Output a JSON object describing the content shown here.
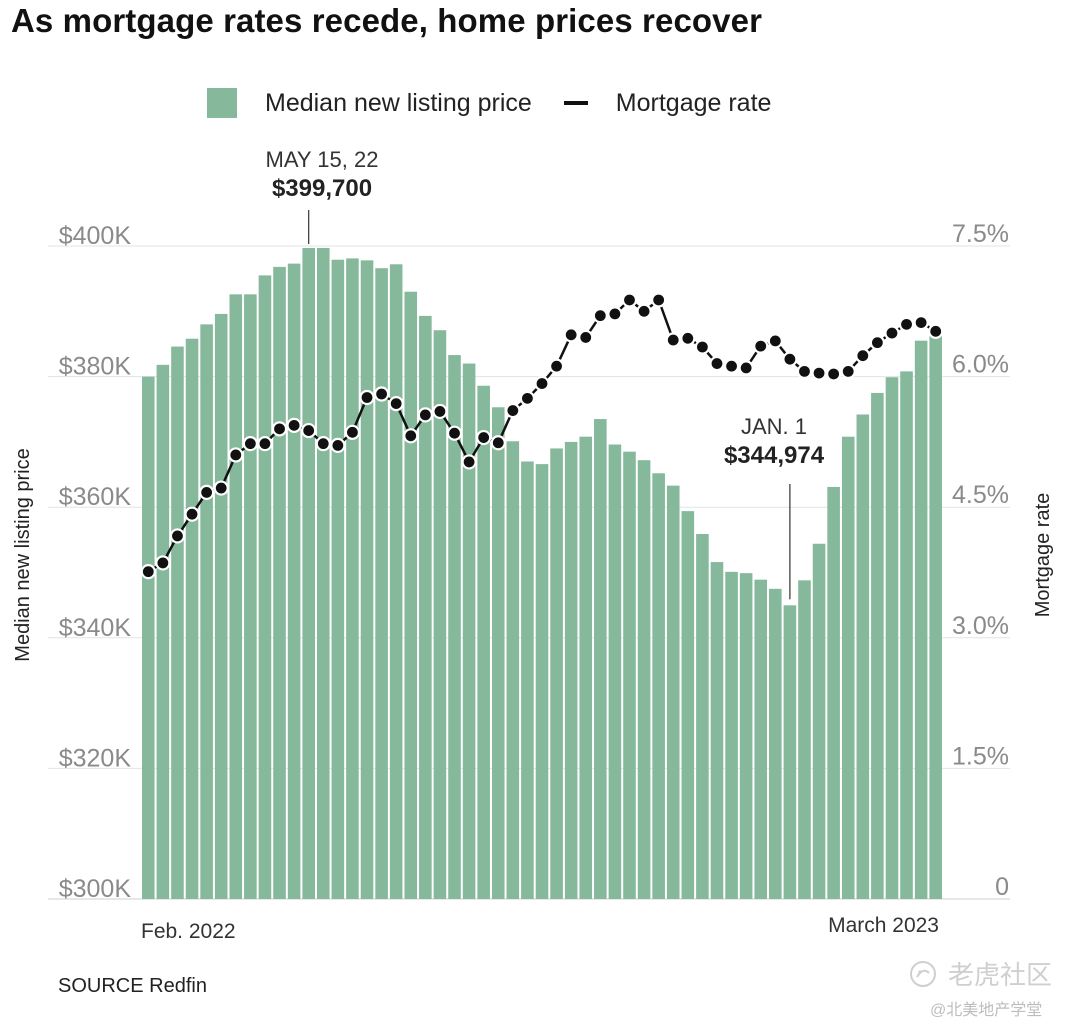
{
  "title": "As mortgage rates recede, home prices recover",
  "legend": {
    "price_label": "Median new listing price",
    "rate_label": "Mortgage rate"
  },
  "source": "SOURCE Redfin",
  "watermark": {
    "main": "老虎社区",
    "sub": "@北美地产学堂"
  },
  "colors": {
    "bar": "#86b89c",
    "line": "#111111",
    "axis_text": "#8a8a8a",
    "grid": "#e3e3e3"
  },
  "chart_data": {
    "type": "bar",
    "title": "As mortgage rates recede, home prices recover",
    "left_axis": {
      "label": "Median new listing price",
      "range": [
        300000,
        400000
      ],
      "ticks": [
        {
          "value": 300000,
          "label": "$300K"
        },
        {
          "value": 320000,
          "label": "$320K"
        },
        {
          "value": 340000,
          "label": "$340K"
        },
        {
          "value": 360000,
          "label": "$360K"
        },
        {
          "value": 380000,
          "label": "$380K"
        },
        {
          "value": 400000,
          "label": "$400K"
        }
      ]
    },
    "right_axis": {
      "label": "Mortgage rate",
      "range": [
        0,
        7.5
      ],
      "ticks": [
        {
          "value": 0,
          "label": "0"
        },
        {
          "value": 1.5,
          "label": "1.5%"
        },
        {
          "value": 3.0,
          "label": "3.0%"
        },
        {
          "value": 4.5,
          "label": "4.5%"
        },
        {
          "value": 6.0,
          "label": "6.0%"
        },
        {
          "value": 7.5,
          "label": "7.5%"
        }
      ]
    },
    "x_labels": {
      "start": "Feb. 2022",
      "end": "March 2023"
    },
    "grid": true,
    "legend_position": "top",
    "series": [
      {
        "name": "Median new listing price",
        "type": "bar",
        "values": [
          380000,
          381800,
          384600,
          385800,
          388000,
          389600,
          392600,
          392600,
          395500,
          396800,
          397300,
          399700,
          399700,
          397900,
          398100,
          397800,
          396600,
          397200,
          393000,
          389300,
          387100,
          383300,
          382000,
          378600,
          375300,
          370100,
          367000,
          366600,
          369000,
          370000,
          370800,
          373500,
          369600,
          368500,
          367200,
          365200,
          363300,
          359400,
          355900,
          351600,
          350100,
          349900,
          348900,
          347500,
          344974,
          348800,
          354400,
          363100,
          370800,
          374200,
          377500,
          379900,
          380800,
          385500,
          386800
        ]
      },
      {
        "name": "Mortgage rate",
        "type": "line",
        "values": [
          3.76,
          3.86,
          4.17,
          4.42,
          4.67,
          4.72,
          5.1,
          5.23,
          5.23,
          5.4,
          5.44,
          5.38,
          5.23,
          5.21,
          5.36,
          5.76,
          5.8,
          5.69,
          5.32,
          5.56,
          5.6,
          5.35,
          5.02,
          5.3,
          5.24,
          5.61,
          5.75,
          5.92,
          6.12,
          6.48,
          6.45,
          6.7,
          6.72,
          6.88,
          6.75,
          6.88,
          6.42,
          6.44,
          6.34,
          6.15,
          6.12,
          6.1,
          6.35,
          6.41,
          6.2,
          6.06,
          6.04,
          6.03,
          6.06,
          6.24,
          6.39,
          6.5,
          6.6,
          6.62,
          6.52
        ]
      }
    ],
    "annotations": [
      {
        "date": "MAY 15, 22",
        "value_label": "$399,700"
      },
      {
        "date": "JAN. 1",
        "value_label": "$344,974"
      }
    ]
  }
}
